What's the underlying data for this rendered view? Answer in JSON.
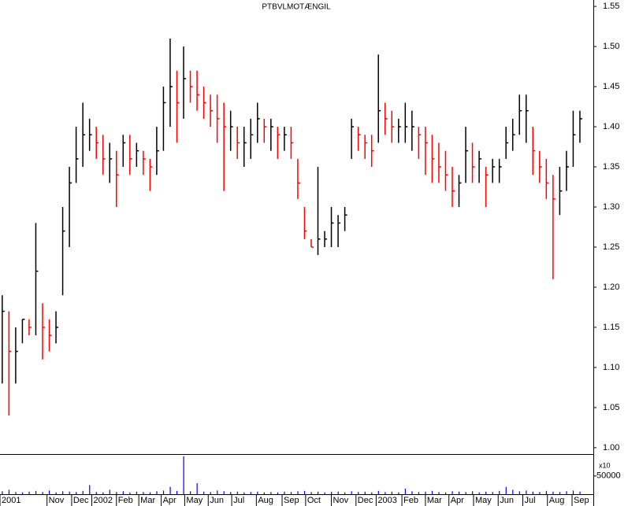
{
  "chart_data": {
    "type": "ohlc",
    "title": "PTBVLMOTÆNGIL",
    "x": [
      2,
      8,
      14,
      20,
      26,
      32,
      38,
      44,
      50,
      56,
      62,
      68,
      74,
      80,
      86,
      92,
      98,
      104,
      110,
      116,
      122,
      128,
      134,
      140,
      146,
      152,
      158,
      164,
      170,
      176,
      182,
      188,
      194,
      200,
      206,
      212,
      218,
      224,
      230,
      236,
      242,
      248,
      254,
      260,
      266,
      272,
      278,
      284,
      290,
      296,
      302,
      308,
      314,
      320,
      326,
      332,
      338,
      344,
      350,
      356,
      362,
      368,
      374,
      380,
      386,
      392,
      398,
      404,
      410,
      416,
      422,
      428,
      434,
      440,
      446,
      452,
      458,
      464,
      470,
      476,
      482,
      488,
      494,
      500,
      506,
      512,
      518
    ],
    "high": [
      1.19,
      1.17,
      1.15,
      1.16,
      1.16,
      1.28,
      1.18,
      1.16,
      1.17,
      1.3,
      1.35,
      1.4,
      1.43,
      1.41,
      1.4,
      1.39,
      1.38,
      1.37,
      1.39,
      1.39,
      1.38,
      1.37,
      1.36,
      1.4,
      1.45,
      1.51,
      1.47,
      1.5,
      1.47,
      1.47,
      1.45,
      1.44,
      1.44,
      1.43,
      1.42,
      1.4,
      1.4,
      1.41,
      1.43,
      1.41,
      1.41,
      1.4,
      1.4,
      1.4,
      1.36,
      1.3,
      1.26,
      1.35,
      1.27,
      1.3,
      1.29,
      1.3,
      1.41,
      1.4,
      1.39,
      1.39,
      1.49,
      1.43,
      1.42,
      1.41,
      1.43,
      1.42,
      1.4,
      1.4,
      1.39,
      1.38,
      1.37,
      1.35,
      1.34,
      1.4,
      1.38,
      1.37,
      1.35,
      1.36,
      1.36,
      1.4,
      1.41,
      1.44,
      1.44,
      1.4,
      1.37,
      1.36,
      1.34,
      1.35,
      1.37,
      1.42,
      1.42
    ],
    "low": [
      1.08,
      1.04,
      1.08,
      1.13,
      1.14,
      1.14,
      1.11,
      1.12,
      1.13,
      1.19,
      1.25,
      1.33,
      1.35,
      1.37,
      1.36,
      1.34,
      1.33,
      1.3,
      1.35,
      1.34,
      1.35,
      1.34,
      1.32,
      1.34,
      1.37,
      1.4,
      1.38,
      1.41,
      1.43,
      1.42,
      1.41,
      1.4,
      1.38,
      1.32,
      1.37,
      1.36,
      1.35,
      1.36,
      1.38,
      1.38,
      1.37,
      1.36,
      1.37,
      1.36,
      1.31,
      1.26,
      1.25,
      1.24,
      1.25,
      1.25,
      1.25,
      1.27,
      1.36,
      1.37,
      1.36,
      1.35,
      1.38,
      1.39,
      1.38,
      1.38,
      1.38,
      1.37,
      1.36,
      1.34,
      1.33,
      1.33,
      1.32,
      1.3,
      1.3,
      1.33,
      1.33,
      1.33,
      1.3,
      1.33,
      1.33,
      1.36,
      1.37,
      1.39,
      1.38,
      1.34,
      1.33,
      1.31,
      1.21,
      1.29,
      1.32,
      1.35,
      1.38
    ],
    "close": [
      1.17,
      1.12,
      1.12,
      1.16,
      1.15,
      1.22,
      1.15,
      1.14,
      1.15,
      1.27,
      1.33,
      1.36,
      1.39,
      1.39,
      1.38,
      1.36,
      1.36,
      1.34,
      1.38,
      1.36,
      1.37,
      1.36,
      1.35,
      1.37,
      1.43,
      1.45,
      1.43,
      1.46,
      1.45,
      1.44,
      1.43,
      1.42,
      1.41,
      1.4,
      1.4,
      1.38,
      1.38,
      1.39,
      1.41,
      1.4,
      1.4,
      1.39,
      1.39,
      1.38,
      1.33,
      1.27,
      1.25,
      1.26,
      1.26,
      1.28,
      1.28,
      1.29,
      1.4,
      1.39,
      1.38,
      1.37,
      1.42,
      1.41,
      1.4,
      1.4,
      1.4,
      1.4,
      1.39,
      1.38,
      1.36,
      1.35,
      1.34,
      1.32,
      1.33,
      1.37,
      1.35,
      1.36,
      1.34,
      1.35,
      1.35,
      1.38,
      1.39,
      1.42,
      1.42,
      1.37,
      1.35,
      1.33,
      1.31,
      1.32,
      1.35,
      1.39,
      1.41
    ],
    "volume": [
      8000,
      12000,
      6000,
      5000,
      7000,
      9000,
      6000,
      10000,
      5000,
      8000,
      7000,
      6000,
      9000,
      25000,
      6000,
      5000,
      12000,
      6000,
      8000,
      5000,
      7000,
      6000,
      5000,
      8000,
      10000,
      20000,
      9000,
      104000,
      8000,
      30000,
      7000,
      6000,
      10000,
      8000,
      6000,
      7000,
      5000,
      6000,
      7000,
      5000,
      6000,
      5000,
      7000,
      6000,
      8000,
      9000,
      6000,
      7000,
      5000,
      6000,
      7000,
      5000,
      8000,
      6000,
      7000,
      5000,
      9000,
      6000,
      7000,
      5000,
      15000,
      8000,
      6000,
      7000,
      9000,
      6000,
      5000,
      8000,
      7000,
      6000,
      8000,
      5000,
      7000,
      6000,
      9000,
      20000,
      12000,
      8000,
      10000,
      7000,
      6000,
      9000,
      7000,
      6000,
      8000,
      10000,
      7000
    ],
    "up_color": "#000000",
    "down_color": "#ff0000",
    "volume_color": "#0000ff",
    "xlim": [
      0,
      530
    ],
    "xticks": [
      {
        "value": 0,
        "label": "2001"
      },
      {
        "value": 42,
        "label": "Nov"
      },
      {
        "value": 64,
        "label": "Dec"
      },
      {
        "value": 82,
        "label": "2002"
      },
      {
        "value": 104,
        "label": "Feb"
      },
      {
        "value": 124,
        "label": "Mar"
      },
      {
        "value": 144,
        "label": "Apr"
      },
      {
        "value": 165,
        "label": "May"
      },
      {
        "value": 186,
        "label": "Jun"
      },
      {
        "value": 207,
        "label": "Jul"
      },
      {
        "value": 229,
        "label": "Aug"
      },
      {
        "value": 252,
        "label": "Sep"
      },
      {
        "value": 273,
        "label": "Oct"
      },
      {
        "value": 296,
        "label": "Nov"
      },
      {
        "value": 318,
        "label": "Dec"
      },
      {
        "value": 336,
        "label": "2003"
      },
      {
        "value": 359,
        "label": "Feb"
      },
      {
        "value": 380,
        "label": "Mar"
      },
      {
        "value": 401,
        "label": "Apr"
      },
      {
        "value": 423,
        "label": "May"
      },
      {
        "value": 445,
        "label": "Jun"
      },
      {
        "value": 467,
        "label": "Jul"
      },
      {
        "value": 489,
        "label": "Aug"
      },
      {
        "value": 511,
        "label": "Sep"
      }
    ],
    "ylim": [
      0.994,
      1.558
    ],
    "yticks": [
      1.55,
      {
        "value": 1.5,
        "label": "1.50"
      },
      1.45,
      {
        "value": 1.4,
        "label": "1.40"
      },
      1.35,
      {
        "value": 1.3,
        "label": "1.30"
      },
      1.25,
      {
        "value": 1.2,
        "label": "1.20"
      },
      1.15,
      {
        "value": 1.1,
        "label": "1.10"
      },
      1.05,
      {
        "value": 1.0,
        "label": "1.00"
      }
    ],
    "y2lim": [
      0,
      110000
    ],
    "y2ticks": [
      50000
    ],
    "volume_label": "x10"
  }
}
